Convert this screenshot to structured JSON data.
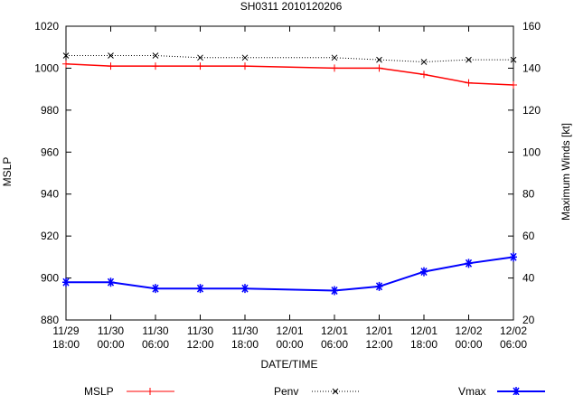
{
  "chart_data": {
    "type": "line",
    "title": "SH0311 2010120206",
    "xlabel": "DATE/TIME",
    "ylabel_left": "MSLP",
    "ylabel_right": "Maximum Winds [kt]",
    "ylim_left": [
      880,
      1020
    ],
    "ylim_right": [
      20,
      160
    ],
    "yticks_left": [
      "880",
      "900",
      "920",
      "940",
      "960",
      "980",
      "1000",
      "1020"
    ],
    "yticks_right": [
      "20",
      "40",
      "60",
      "80",
      "100",
      "120",
      "140",
      "160"
    ],
    "categories": [
      {
        "date": "11/29",
        "time": "18:00"
      },
      {
        "date": "11/30",
        "time": "00:00"
      },
      {
        "date": "11/30",
        "time": "06:00"
      },
      {
        "date": "11/30",
        "time": "12:00"
      },
      {
        "date": "11/30",
        "time": "18:00"
      },
      {
        "date": "12/01",
        "time": "00:00"
      },
      {
        "date": "12/01",
        "time": "06:00"
      },
      {
        "date": "12/01",
        "time": "12:00"
      },
      {
        "date": "12/01",
        "time": "18:00"
      },
      {
        "date": "12/02",
        "time": "00:00"
      },
      {
        "date": "12/02",
        "time": "06:00"
      }
    ],
    "grid": false,
    "legend_placement": "bottom",
    "series": [
      {
        "name": "MSLP",
        "axis": "left",
        "color": "#ff0000",
        "marker": "plus",
        "x": [
          0,
          1,
          2,
          3,
          4,
          6,
          7,
          8,
          9,
          10
        ],
        "values": [
          1002,
          1001,
          1001,
          1001,
          1001,
          1000,
          1000,
          997,
          993,
          992
        ]
      },
      {
        "name": "Penv",
        "axis": "left",
        "color": "#000000",
        "marker": "cross",
        "dashed": true,
        "x": [
          0,
          1,
          2,
          3,
          4,
          6,
          7,
          8,
          9,
          10
        ],
        "values": [
          1006,
          1006,
          1006,
          1005,
          1005,
          1005,
          1004,
          1003,
          1004,
          1004
        ]
      },
      {
        "name": "Vmax",
        "axis": "right",
        "color": "#0000ff",
        "marker": "star",
        "x": [
          0,
          1,
          2,
          3,
          4,
          6,
          7,
          8,
          9,
          10
        ],
        "values": [
          38,
          38,
          35,
          35,
          35,
          34,
          36,
          43,
          47,
          50
        ]
      }
    ]
  }
}
